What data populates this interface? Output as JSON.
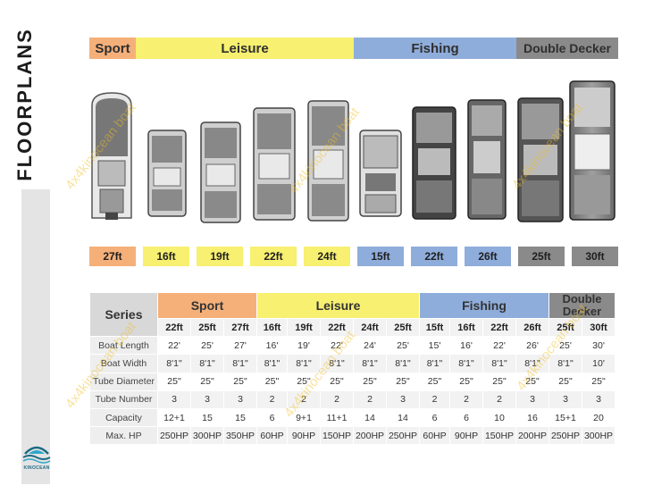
{
  "page_title": "FLOORPLANS",
  "brand": "KINOCEAN",
  "watermark": "4x4kinocean boat",
  "categories": [
    {
      "label": "Sport",
      "color": "#f5b07a"
    },
    {
      "label": "Leisure",
      "color": "#f7f070"
    },
    {
      "label": "Fishing",
      "color": "#8faddb"
    },
    {
      "label": "Double Decker",
      "color": "#8a8a8a"
    }
  ],
  "boat_sizes": [
    "27ft",
    "16ft",
    "19ft",
    "22ft",
    "24ft",
    "15ft",
    "22ft",
    "26ft",
    "25ft",
    "30ft"
  ],
  "table": {
    "series_label": "Series",
    "group_headers": [
      "Sport",
      "Leisure",
      "Fishing",
      "Double Decker"
    ],
    "sizes": [
      "22ft",
      "25ft",
      "27ft",
      "16ft",
      "19ft",
      "22ft",
      "24ft",
      "25ft",
      "15ft",
      "16ft",
      "22ft",
      "26ft",
      "25ft",
      "30ft"
    ],
    "rows": [
      {
        "label": "Boat Length",
        "values": [
          "22'",
          "25'",
          "27'",
          "16'",
          "19'",
          "22'",
          "24'",
          "25'",
          "15'",
          "16'",
          "22'",
          "26'",
          "25'",
          "30'"
        ]
      },
      {
        "label": "Boat Width",
        "values": [
          "8'1\"",
          "8'1\"",
          "8'1\"",
          "8'1\"",
          "8'1\"",
          "8'1\"",
          "8'1\"",
          "8'1\"",
          "8'1\"",
          "8'1\"",
          "8'1\"",
          "8'1\"",
          "8'1\"",
          "10'"
        ]
      },
      {
        "label": "Tube Diameter",
        "values": [
          "25\"",
          "25\"",
          "25\"",
          "25\"",
          "25\"",
          "25\"",
          "25\"",
          "25\"",
          "25\"",
          "25\"",
          "25\"",
          "25\"",
          "25\"",
          "25\""
        ]
      },
      {
        "label": "Tube Number",
        "values": [
          "3",
          "3",
          "3",
          "2",
          "2",
          "2",
          "2",
          "3",
          "2",
          "2",
          "2",
          "3",
          "3",
          "3"
        ]
      },
      {
        "label": "Capacity",
        "values": [
          "12+1",
          "15",
          "15",
          "6",
          "9+1",
          "11+1",
          "14",
          "14",
          "6",
          "6",
          "10",
          "16",
          "15+1",
          "20"
        ]
      },
      {
        "label": "Max. HP",
        "values": [
          "250HP",
          "300HP",
          "350HP",
          "60HP",
          "90HP",
          "150HP",
          "200HP",
          "250HP",
          "60HP",
          "90HP",
          "150HP",
          "200HP",
          "250HP",
          "300HP"
        ]
      }
    ]
  }
}
